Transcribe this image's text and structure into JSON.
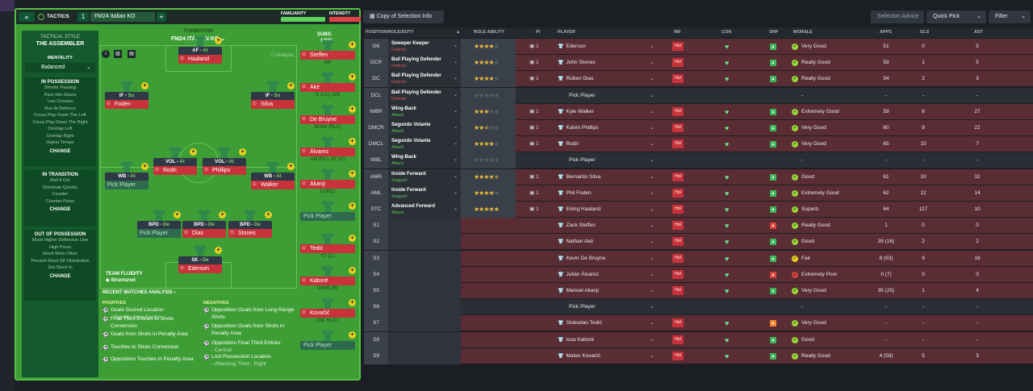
{
  "header": {
    "tab_label": "TACTICS",
    "slot": "1",
    "tactic_name": "FM24 Italian KO",
    "add": "+",
    "familiarity": "FAMILIARITY",
    "intensity": "INTENSITY"
  },
  "sidebar": {
    "style_label": "TACTICAL STYLE",
    "style": "THE ASSEMBLER",
    "mentality_label": "MENTALITY",
    "mentality": "Balanced",
    "in_possession": {
      "title": "IN POSSESSION",
      "items": [
        "Shorter Passing",
        "Pass Into Space",
        "Low Crosses",
        "Run At Defence",
        "Focus Play Down The Left",
        "Focus Play Down The Right",
        "Overlap Left",
        "Overlap Right",
        "Higher Tempo"
      ],
      "button": "CHANGE"
    },
    "in_transition": {
      "title": "IN TRANSITION",
      "items": [
        "Roll It Out",
        "Distribute Quickly",
        "Counter",
        "Counter-Press"
      ],
      "button": "CHANGE"
    },
    "out_of_possession": {
      "title": "OUT OF POSSESSION",
      "items": [
        "Much Higher Defensive Line",
        "High Press",
        "Much More Often",
        "Prevent Short GK Distribution",
        "Get Stuck In"
      ],
      "button": "CHANGE"
    }
  },
  "formation": {
    "label": "FORMATION",
    "name": "FM24 ITALIAN KO",
    "analysis": "Analysis",
    "subs_label": "SUBS:",
    "subs_count": "12/15"
  },
  "pitch_players": [
    {
      "role": "AF",
      "duty": "At",
      "name": "Haaland"
    },
    {
      "role": "IF",
      "duty": "Su",
      "name": "Foden"
    },
    {
      "role": "IF",
      "duty": "Su",
      "name": "Silva"
    },
    {
      "role": "VOL",
      "duty": "At",
      "name": "Rodri"
    },
    {
      "role": "VOL",
      "duty": "At",
      "name": "Phillips"
    },
    {
      "role": "WB",
      "duty": "At",
      "name": "Pick Player"
    },
    {
      "role": "WB",
      "duty": "At",
      "name": "Walker"
    },
    {
      "role": "BPD",
      "duty": "De",
      "name": "Pick Player"
    },
    {
      "role": "BPD",
      "duty": "De",
      "name": "Dias"
    },
    {
      "role": "BPD",
      "duty": "De",
      "name": "Stones"
    },
    {
      "role": "SK",
      "duty": "De",
      "name": "Ederson"
    }
  ],
  "subs": [
    {
      "name": "Steffen",
      "pos": "GK"
    },
    {
      "name": "Aké",
      "pos": "D (LC), DM"
    },
    {
      "name": "De Bruyne",
      "pos": "M/AM (RLC)"
    },
    {
      "name": "Álvarez",
      "pos": "AM (RL), ST (C)"
    },
    {
      "name": "Akanji",
      "pos": "D (RC)"
    },
    {
      "name": "Pick Player",
      "pos": ""
    },
    {
      "name": "Tedić",
      "pos": "ST (C)"
    },
    {
      "name": "Kaboré",
      "pos": "D/WB (R)"
    },
    {
      "name": "Kovačić",
      "pos": "DM, M (C)"
    },
    {
      "name": "Pick Player",
      "pos": ""
    }
  ],
  "fluidity": {
    "label": "TEAM FLUIDITY",
    "value": "Structured"
  },
  "analysis": {
    "title": "RECENT MATCHES ANALYSIS ›",
    "positives_label": "POSITIVES",
    "negatives_label": "NEGATIVES",
    "positives": [
      {
        "t": "Goals Scored Location",
        "s": "- Penalty Area Centre"
      },
      {
        "t": "Final Third Entries to Shots Conversion",
        "s": ""
      },
      {
        "t": "Goals from Shots in Penalty Area",
        "s": ""
      },
      {
        "t": "Touches to Shots Conversion",
        "s": ""
      },
      {
        "t": "Opposition Touches in Penalty Area",
        "s": ""
      }
    ],
    "negatives": [
      {
        "t": "Opposition Goals from Long-Range Shots",
        "s": ""
      },
      {
        "t": "Opposition Goals from Shots in Penalty Area",
        "s": ""
      },
      {
        "t": "Opposition Final Third Entries",
        "s": "- Central"
      },
      {
        "t": "Lost Possession Location",
        "s": "- Attacking Third - Right"
      }
    ]
  },
  "toolbar": {
    "copy": "Copy of Selection Info",
    "advice": "Selection Advice",
    "quick_pick": "Quick Pick",
    "filter": "Filter"
  },
  "columns": [
    "POSITION/ROLE/DUTY",
    "ROLE ABILITY",
    "PI",
    "PLAYER",
    "INF",
    "CON",
    "SHP",
    "MORALE",
    "APPS",
    "GLS",
    "AST"
  ],
  "rows": [
    {
      "pos": "GK",
      "role": "Sweeper Keeper",
      "duty": "Defend",
      "stars": 4,
      "pi": "1",
      "player": "Ederson",
      "inf": "Hol",
      "shp": "green",
      "mor": "Very Good",
      "mor_c": "green",
      "apps": "51",
      "gls": "0",
      "ast": "5",
      "style": "red"
    },
    {
      "pos": "DCR",
      "role": "Ball Playing Defender",
      "duty": "Defend",
      "stars": 4,
      "pi": "1",
      "player": "John Stones",
      "inf": "Hol",
      "shp": "green",
      "mor": "Really Good",
      "mor_c": "green",
      "apps": "59",
      "gls": "1",
      "ast": "5",
      "style": "red"
    },
    {
      "pos": "DC",
      "role": "Ball Playing Defender",
      "duty": "Defend",
      "stars": 4,
      "pi": "1",
      "player": "Rúben Dias",
      "inf": "Hol",
      "shp": "green",
      "mor": "Really Good",
      "mor_c": "green",
      "apps": "54",
      "gls": "2",
      "ast": "3",
      "style": "red"
    },
    {
      "pos": "DCL",
      "role": "Ball Playing Defender",
      "duty": "Defend",
      "stars": 0,
      "pi": "",
      "player": "Pick Player",
      "inf": "",
      "shp": "",
      "mor": "-",
      "mor_c": "",
      "apps": "-",
      "gls": "-",
      "ast": "-",
      "style": "dark"
    },
    {
      "pos": "WBR",
      "role": "Wing-Back",
      "duty": "Attack",
      "stars": 3,
      "pi": "1",
      "player": "Kyle Walker",
      "inf": "Hol",
      "shp": "green",
      "mor": "Extremely Good",
      "mor_c": "green",
      "apps": "59",
      "gls": "6",
      "ast": "27",
      "style": "red"
    },
    {
      "pos": "DMCR",
      "role": "Segundo Volante",
      "duty": "Attack",
      "stars": 2.5,
      "pi": "1",
      "player": "Kalvin Phillips",
      "inf": "Hol",
      "shp": "green",
      "mor": "Very Good",
      "mor_c": "green",
      "apps": "60",
      "gls": "9",
      "ast": "22",
      "style": "red"
    },
    {
      "pos": "DMCL",
      "role": "Segundo Volante",
      "duty": "Attack",
      "stars": 4,
      "pi": "1",
      "player": "Rodri",
      "inf": "Hol",
      "shp": "green",
      "mor": "Very Good",
      "mor_c": "green",
      "apps": "65",
      "gls": "15",
      "ast": "7",
      "style": "red"
    },
    {
      "pos": "WBL",
      "role": "Wing-Back",
      "duty": "Attack",
      "stars": 0,
      "pi": "",
      "player": "Pick Player",
      "inf": "",
      "shp": "",
      "mor": "-",
      "mor_c": "",
      "apps": "-",
      "gls": "-",
      "ast": "-",
      "style": "dark"
    },
    {
      "pos": "AMR",
      "role": "Inside Forward",
      "duty": "Support",
      "stars": 4.5,
      "pi": "1",
      "player": "Bernardo Silva",
      "inf": "Hol",
      "shp": "green",
      "mor": "Good",
      "mor_c": "green",
      "apps": "61",
      "gls": "10",
      "ast": "31",
      "style": "red"
    },
    {
      "pos": "AML",
      "role": "Inside Forward",
      "duty": "Support",
      "stars": 4,
      "pi": "1",
      "player": "Phil Foden",
      "inf": "Hol",
      "shp": "green",
      "mor": "Extremely Good",
      "mor_c": "green",
      "apps": "62",
      "gls": "12",
      "ast": "14",
      "style": "red"
    },
    {
      "pos": "STC",
      "role": "Advanced Forward",
      "duty": "Attack",
      "stars": 5,
      "pi": "1",
      "player": "Erling Haaland",
      "inf": "Hol",
      "shp": "green",
      "mor": "Superb",
      "mor_c": "green",
      "apps": "64",
      "gls": "117",
      "ast": "10",
      "style": "red"
    },
    {
      "pos": "S1",
      "role": "",
      "duty": "",
      "stars": -1,
      "pi": "",
      "player": "Zack Steffen",
      "inf": "Hol",
      "shp": "red",
      "mor": "Really Good",
      "mor_c": "green",
      "apps": "1",
      "gls": "0",
      "ast": "0",
      "style": "red"
    },
    {
      "pos": "S2",
      "role": "",
      "duty": "",
      "stars": -1,
      "pi": "",
      "player": "Nathan Aké",
      "inf": "Hol",
      "shp": "green",
      "mor": "Good",
      "mor_c": "green",
      "apps": "39 (16)",
      "gls": "2",
      "ast": "2",
      "style": "red"
    },
    {
      "pos": "S3",
      "role": "",
      "duty": "",
      "stars": -1,
      "pi": "",
      "player": "Kevin De Bruyne",
      "inf": "Hol",
      "shp": "green",
      "mor": "Fair",
      "mor_c": "yellow",
      "apps": "8 (53)",
      "gls": "9",
      "ast": "18",
      "style": "red"
    },
    {
      "pos": "S4",
      "role": "",
      "duty": "",
      "stars": -1,
      "pi": "",
      "player": "Julián Álvarez",
      "inf": "Hol",
      "shp": "red",
      "mor": "Extremely Poor",
      "mor_c": "red",
      "apps": "0 (7)",
      "gls": "0",
      "ast": "0",
      "style": "red"
    },
    {
      "pos": "S5",
      "role": "",
      "duty": "",
      "stars": -1,
      "pi": "",
      "player": "Manuel Akanji",
      "inf": "Hol",
      "shp": "green",
      "mor": "Very Good",
      "mor_c": "green",
      "apps": "35 (25)",
      "gls": "1",
      "ast": "4",
      "style": "red"
    },
    {
      "pos": "S6",
      "role": "",
      "duty": "",
      "stars": -1,
      "pi": "",
      "player": "Pick Player",
      "inf": "",
      "shp": "",
      "mor": "-",
      "mor_c": "",
      "apps": "-",
      "gls": "-",
      "ast": "-",
      "style": "dark"
    },
    {
      "pos": "S7",
      "role": "",
      "duty": "",
      "stars": -1,
      "pi": "",
      "player": "Slobodan Tedić",
      "inf": "Hol",
      "shp": "orange",
      "mor": "Very Good",
      "mor_c": "green",
      "apps": "-",
      "gls": "-",
      "ast": "-",
      "style": "red"
    },
    {
      "pos": "S8",
      "role": "",
      "duty": "",
      "stars": -1,
      "pi": "",
      "player": "Issa Kaboré",
      "inf": "Hol",
      "shp": "green",
      "mor": "Good",
      "mor_c": "green",
      "apps": "-",
      "gls": "-",
      "ast": "-",
      "style": "red"
    },
    {
      "pos": "S9",
      "role": "",
      "duty": "",
      "stars": -1,
      "pi": "",
      "player": "Mateo Kovačić",
      "inf": "Hol",
      "shp": "green",
      "mor": "Really Good",
      "mor_c": "green",
      "apps": "4 (58)",
      "gls": "5",
      "ast": "3",
      "style": "red"
    }
  ]
}
